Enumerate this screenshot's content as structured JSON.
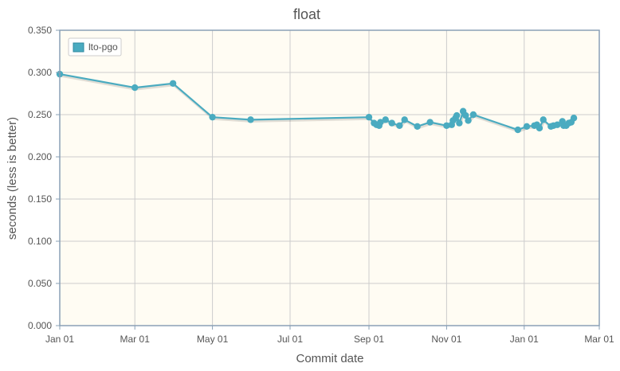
{
  "chart_data": {
    "type": "line",
    "title": "float",
    "xlabel": "Commit date",
    "ylabel": "seconds (less is better)",
    "x_axis": {
      "start": "Jan 01",
      "end": "Mar 01 (following year)",
      "ticks": [
        "Jan 01",
        "Mar 01",
        "May 01",
        "Jul 01",
        "Sep 01",
        "Nov 01",
        "Jan 01",
        "Mar 01"
      ]
    },
    "y_axis": {
      "ylim": [
        0,
        0.35
      ],
      "ticks": [
        "0.000",
        "0.050",
        "0.100",
        "0.150",
        "0.200",
        "0.250",
        "0.300",
        "0.350"
      ]
    },
    "grid": true,
    "legend_position": "top-left",
    "series": [
      {
        "name": "lto-pgo",
        "color": "#4aabc0",
        "points": [
          [
            "Jan 01",
            0.298
          ],
          [
            "Mar 01",
            0.282
          ],
          [
            "Mar 31",
            0.287
          ],
          [
            "May 01",
            0.247
          ],
          [
            "May 31",
            0.244
          ],
          [
            "Sep 01",
            0.247
          ],
          [
            "Sep 05",
            0.24
          ],
          [
            "Sep 07",
            0.238
          ],
          [
            "Sep 09",
            0.237
          ],
          [
            "Sep 10",
            0.241
          ],
          [
            "Sep 14",
            0.244
          ],
          [
            "Sep 19",
            0.24
          ],
          [
            "Sep 25",
            0.237
          ],
          [
            "Sep 29",
            0.244
          ],
          [
            "Oct 09",
            0.236
          ],
          [
            "Oct 19",
            0.241
          ],
          [
            "Nov 01",
            0.237
          ],
          [
            "Nov 05",
            0.238
          ],
          [
            "Nov 06",
            0.243
          ],
          [
            "Nov 08",
            0.246
          ],
          [
            "Nov 09",
            0.249
          ],
          [
            "Nov 11",
            0.24
          ],
          [
            "Nov 14",
            0.254
          ],
          [
            "Nov 16",
            0.249
          ],
          [
            "Nov 18",
            0.243
          ],
          [
            "Nov 22",
            0.25
          ],
          [
            "Dec 27",
            0.232
          ],
          [
            "Jan 03",
            0.236
          ],
          [
            "Jan 09",
            0.237
          ],
          [
            "Jan 11",
            0.238
          ],
          [
            "Jan 13",
            0.234
          ],
          [
            "Jan 16",
            0.244
          ],
          [
            "Jan 22",
            0.236
          ],
          [
            "Jan 24",
            0.237
          ],
          [
            "Jan 27",
            0.238
          ],
          [
            "Jan 31",
            0.242
          ],
          [
            "Feb 01",
            0.237
          ],
          [
            "Feb 03",
            0.237
          ],
          [
            "Feb 05",
            0.24
          ],
          [
            "Feb 07",
            0.241
          ],
          [
            "Feb 09",
            0.246
          ]
        ]
      }
    ]
  },
  "colors": {
    "plot_background": "#fffcf3",
    "axis": "#8aa0b6",
    "grid": "#cccccc",
    "text": "#555555"
  }
}
